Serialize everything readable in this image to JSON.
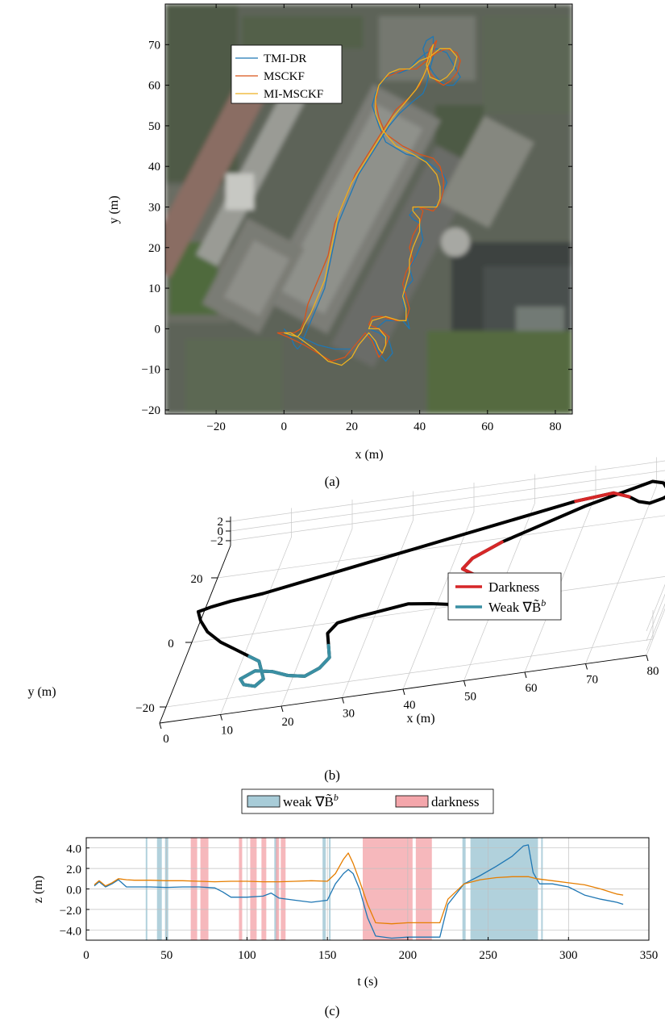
{
  "chart_data": [
    {
      "id": "a",
      "type": "line",
      "caption": "(a)",
      "xlabel": "x (m)",
      "ylabel": "y (m)",
      "xlim": [
        -35,
        85
      ],
      "ylim": [
        -21,
        80
      ],
      "xticks": [
        -20,
        0,
        20,
        40,
        60,
        80
      ],
      "yticks": [
        -20,
        -10,
        0,
        10,
        20,
        30,
        40,
        50,
        60,
        70
      ],
      "background": "aerial-photo",
      "legend_position": "top-left",
      "series": [
        {
          "name": "TMI-DR",
          "color": "#1f77b4",
          "x": [
            0,
            5,
            10,
            15,
            20,
            22,
            24,
            26,
            27,
            28,
            30,
            32,
            31,
            28,
            25,
            27,
            30,
            35,
            37,
            36,
            35,
            36,
            38,
            37,
            39,
            41,
            40,
            38,
            37,
            38,
            40,
            44,
            46,
            47,
            48,
            47,
            44,
            41,
            36,
            30,
            28,
            26,
            27,
            29,
            32,
            34,
            37,
            39,
            42,
            45,
            48,
            50,
            52,
            50,
            48,
            46,
            44,
            42,
            41,
            42,
            44,
            44,
            43,
            42,
            41,
            38,
            34,
            31,
            28,
            25,
            22,
            20,
            18,
            16,
            15,
            14,
            13,
            12,
            10,
            8,
            7,
            6,
            5,
            4,
            3,
            2,
            1,
            0
          ],
          "y": [
            -1,
            -2,
            -4,
            -5,
            -5,
            -3,
            -1,
            -2,
            -4,
            -6,
            -8,
            -6,
            -3,
            -1,
            0,
            0,
            2,
            2,
            0,
            4,
            7,
            10,
            12,
            15,
            18,
            22,
            26,
            27,
            28,
            29,
            30,
            30,
            31,
            34,
            36,
            38,
            40,
            42,
            43,
            46,
            50,
            55,
            58,
            61,
            63,
            63,
            64,
            66,
            68,
            69,
            68,
            65,
            62,
            60,
            60,
            61,
            63,
            66,
            69,
            71,
            72,
            67,
            64,
            60,
            58,
            56,
            53,
            50,
            46,
            42,
            38,
            34,
            30,
            26,
            22,
            18,
            14,
            10,
            6,
            2,
            0,
            -2,
            -4,
            -5,
            -4,
            -2,
            -1,
            0
          ]
        },
        {
          "name": "MSCKF",
          "color": "#d95319",
          "x": [
            -2,
            1,
            6,
            10,
            14,
            18,
            21,
            23,
            24,
            26,
            27,
            28,
            29,
            30,
            31,
            28,
            25,
            26,
            29,
            33,
            36,
            37,
            36,
            35,
            36,
            38,
            37,
            38,
            40,
            41,
            40,
            38,
            38,
            40,
            44,
            46,
            47,
            47,
            46,
            44,
            40,
            35,
            30,
            28,
            27,
            28,
            30,
            33,
            36,
            39,
            42,
            45,
            48,
            51,
            52,
            51,
            49,
            47,
            45,
            43,
            42,
            43,
            45,
            44,
            42,
            40,
            37,
            33,
            30,
            27,
            24,
            21,
            19,
            17,
            15,
            14,
            13,
            11,
            9,
            7,
            6,
            5,
            3,
            1,
            -2
          ],
          "y": [
            -1,
            -2,
            -4,
            -6,
            -8,
            -7,
            -4,
            -2,
            -1,
            -3,
            -5,
            -7,
            -6,
            -4,
            -2,
            0,
            1,
            3,
            3,
            2,
            2,
            5,
            8,
            11,
            14,
            17,
            20,
            23,
            26,
            29,
            30,
            30,
            30,
            30,
            29,
            31,
            34,
            37,
            40,
            42,
            43,
            45,
            48,
            52,
            56,
            60,
            62,
            63,
            64,
            64,
            66,
            68,
            69,
            68,
            66,
            63,
            61,
            60,
            61,
            63,
            66,
            69,
            71,
            68,
            64,
            60,
            57,
            54,
            50,
            46,
            42,
            38,
            34,
            30,
            26,
            22,
            18,
            14,
            10,
            6,
            2,
            0,
            -1,
            -1,
            -1
          ]
        },
        {
          "name": "MI-MSCKF",
          "color": "#edb120",
          "x": [
            0,
            4,
            9,
            13,
            17,
            20,
            22,
            24,
            25,
            27,
            28,
            29,
            30,
            30,
            28,
            25,
            26,
            30,
            34,
            36,
            36,
            35,
            36,
            37,
            37,
            38,
            40,
            40,
            38,
            38,
            40,
            43,
            45,
            46,
            46,
            45,
            42,
            38,
            33,
            29,
            27,
            27,
            28,
            31,
            34,
            37,
            40,
            43,
            46,
            49,
            51,
            50,
            48,
            46,
            43,
            42,
            43,
            44,
            43,
            41,
            39,
            36,
            32,
            29,
            26,
            23,
            20,
            18,
            16,
            15,
            14,
            13,
            12,
            10,
            8,
            6,
            5,
            4,
            2,
            0
          ],
          "y": [
            -1,
            -2,
            -5,
            -8,
            -9,
            -7,
            -4,
            -2,
            -1,
            -3,
            -5,
            -6,
            -4,
            -2,
            0,
            0,
            2,
            3,
            2,
            2,
            5,
            8,
            11,
            14,
            17,
            20,
            24,
            27,
            29,
            30,
            30,
            30,
            30,
            32,
            35,
            38,
            41,
            43,
            45,
            49,
            53,
            57,
            60,
            63,
            64,
            64,
            66,
            67,
            69,
            69,
            67,
            64,
            62,
            61,
            62,
            65,
            68,
            70,
            66,
            62,
            59,
            56,
            52,
            48,
            44,
            40,
            36,
            32,
            28,
            24,
            20,
            16,
            12,
            8,
            4,
            1,
            -1,
            -2,
            -1,
            -1
          ]
        }
      ]
    },
    {
      "id": "b",
      "type": "line",
      "caption": "(b)",
      "xlabel": "x (m)",
      "ylabel": "y (m)",
      "x_ticks": [
        0,
        10,
        20,
        30,
        40,
        50,
        60,
        70,
        80
      ],
      "y_ticks": [
        -20,
        0,
        20
      ],
      "z_ticks": [
        -2,
        0,
        2
      ],
      "legend_position": "right",
      "legend": [
        {
          "label": "Darkness",
          "color": "#d62728"
        },
        {
          "label": "Weak ∇B̃",
          "sup": "b",
          "color": "#3a8fa3"
        }
      ],
      "trajectory_color": "#000000",
      "path": {
        "x": [
          0,
          1,
          3,
          6,
          9,
          12,
          14,
          15,
          16,
          15,
          13,
          12,
          14,
          17,
          20,
          23,
          25,
          26,
          25,
          24,
          25,
          28,
          32,
          36,
          40,
          43,
          45,
          47,
          48,
          47,
          45,
          43,
          44,
          48,
          54,
          60,
          66,
          70,
          72,
          73,
          74,
          73,
          71,
          69,
          67,
          64,
          58,
          52,
          46,
          40,
          34,
          28,
          22,
          16,
          10,
          5,
          2,
          0
        ],
        "y": [
          5,
          2,
          -2,
          -6,
          -9,
          -12,
          -14,
          -17,
          -20,
          -22,
          -21,
          -19,
          -17,
          -18,
          -20,
          -21,
          -19,
          -16,
          -12,
          -8,
          -5,
          -4,
          -3,
          -2,
          -3,
          -4,
          -3,
          -1,
          1,
          3,
          5,
          7,
          10,
          14,
          18,
          22,
          25,
          27,
          26,
          24,
          22,
          21,
          20,
          21,
          23,
          25,
          24,
          22,
          20,
          18,
          16,
          14,
          12,
          10,
          8,
          7,
          6,
          5
        ],
        "z": [
          0,
          0,
          0,
          0,
          0,
          0,
          0,
          0,
          0,
          0,
          0,
          0,
          0,
          0,
          0,
          0,
          0,
          0,
          0,
          0,
          0,
          0,
          0,
          0,
          0,
          0,
          0,
          0,
          0,
          0,
          0,
          0,
          0,
          0,
          0,
          0,
          0,
          0,
          0,
          0,
          0,
          0,
          0,
          0,
          0,
          0,
          0,
          0,
          0,
          0,
          0,
          0,
          0,
          0,
          0,
          0,
          0,
          0
        ]
      },
      "highlight_segments": [
        {
          "kind": "weak",
          "from": 5,
          "to": 18
        },
        {
          "kind": "darkness",
          "from": 27,
          "to": 33
        },
        {
          "kind": "darkness",
          "from": 44,
          "to": 46
        }
      ]
    },
    {
      "id": "c",
      "type": "line",
      "caption": "(c)",
      "xlabel": "t (s)",
      "ylabel": "z (m)",
      "xlim": [
        0,
        350
      ],
      "ylim": [
        -5,
        5
      ],
      "xticks": [
        0,
        50,
        100,
        150,
        200,
        250,
        300,
        350
      ],
      "yticks": [
        -4.0,
        -2.0,
        0.0,
        2.0,
        4.0
      ],
      "ytick_labels": [
        "−4.0",
        "−2.0",
        "0.0",
        "2.0",
        "4.0"
      ],
      "grid": true,
      "legend": [
        {
          "label": "weak ∇B̃",
          "sup": "b",
          "color": "#a8ccd8"
        },
        {
          "label": "darkness",
          "color": "#f4a6ab"
        }
      ],
      "weak_bands": [
        [
          37,
          38
        ],
        [
          44,
          47
        ],
        [
          49,
          51
        ],
        [
          117,
          119
        ],
        [
          147,
          149
        ],
        [
          151,
          152
        ],
        [
          234,
          236
        ],
        [
          239,
          281
        ],
        [
          283,
          284
        ]
      ],
      "dark_bands": [
        [
          65,
          69
        ],
        [
          71,
          76
        ],
        [
          95,
          97
        ],
        [
          102,
          106
        ],
        [
          109,
          112
        ],
        [
          118,
          120
        ],
        [
          121,
          124
        ],
        [
          172,
          203
        ],
        [
          205,
          215
        ]
      ],
      "series": [
        {
          "color": "#1f77b4",
          "x": [
            5,
            8,
            12,
            16,
            20,
            25,
            30,
            40,
            50,
            60,
            70,
            80,
            85,
            90,
            100,
            110,
            115,
            120,
            130,
            140,
            150,
            155,
            160,
            163,
            166,
            170,
            175,
            180,
            190,
            200,
            210,
            220,
            225,
            235,
            245,
            255,
            265,
            272,
            275,
            278,
            282,
            290,
            300,
            310,
            320,
            330,
            334
          ],
          "y": [
            0.3,
            0.7,
            0.2,
            0.5,
            0.9,
            0.2,
            0.2,
            0.2,
            0.15,
            0.2,
            0.2,
            0.1,
            -0.3,
            -0.8,
            -0.8,
            -0.7,
            -0.4,
            -0.9,
            -1.1,
            -1.3,
            -1.1,
            0.5,
            1.5,
            1.9,
            1.5,
            0.0,
            -2.8,
            -4.6,
            -4.8,
            -4.7,
            -4.7,
            -4.7,
            -1.5,
            0.5,
            1.3,
            2.2,
            3.2,
            4.2,
            4.3,
            1.6,
            0.5,
            0.5,
            0.2,
            -0.6,
            -1.0,
            -1.3,
            -1.5
          ]
        },
        {
          "color": "#e67e00",
          "x": [
            5,
            8,
            12,
            16,
            20,
            25,
            30,
            40,
            50,
            60,
            70,
            80,
            90,
            100,
            110,
            120,
            130,
            140,
            150,
            155,
            160,
            163,
            166,
            170,
            175,
            180,
            190,
            200,
            210,
            220,
            225,
            235,
            245,
            255,
            265,
            275,
            280,
            290,
            300,
            310,
            320,
            330,
            334
          ],
          "y": [
            0.4,
            0.8,
            0.3,
            0.6,
            1.0,
            0.9,
            0.85,
            0.85,
            0.8,
            0.8,
            0.75,
            0.7,
            0.75,
            0.75,
            0.7,
            0.7,
            0.75,
            0.8,
            0.75,
            1.5,
            2.9,
            3.5,
            2.5,
            0.8,
            -1.5,
            -3.3,
            -3.4,
            -3.3,
            -3.3,
            -3.3,
            -1.0,
            0.5,
            0.9,
            1.1,
            1.2,
            1.2,
            1.0,
            0.8,
            0.6,
            0.4,
            0.0,
            -0.5,
            -0.6
          ]
        }
      ]
    }
  ]
}
